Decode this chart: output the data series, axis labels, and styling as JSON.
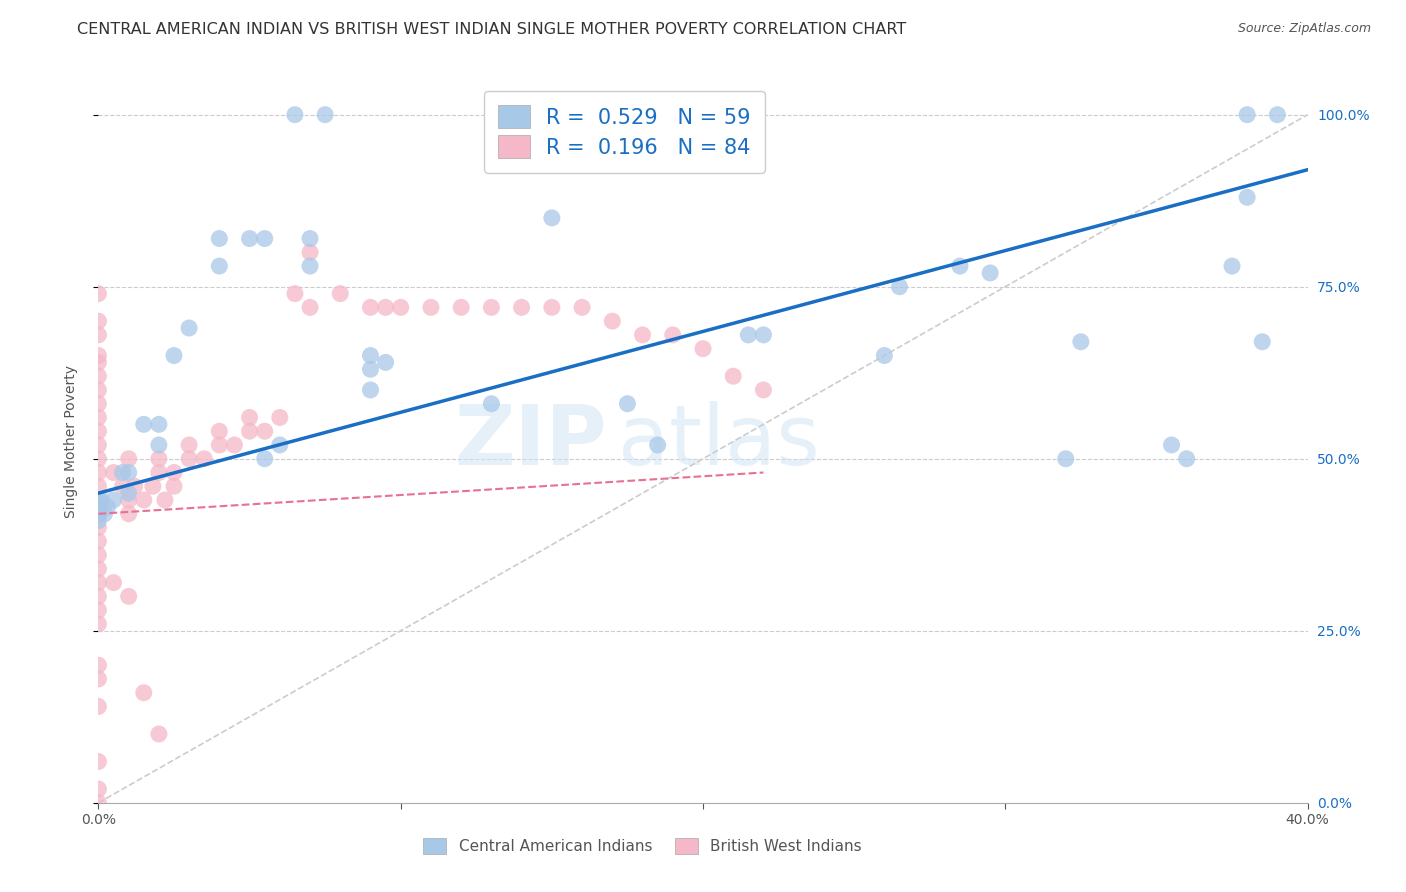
{
  "title": "CENTRAL AMERICAN INDIAN VS BRITISH WEST INDIAN SINGLE MOTHER POVERTY CORRELATION CHART",
  "source": "Source: ZipAtlas.com",
  "legend_label1": "Central American Indians",
  "legend_label2": "British West Indians",
  "legend_r1": "0.529",
  "legend_n1": "59",
  "legend_r2": "0.196",
  "legend_n2": "84",
  "color_blue": "#a8c8e8",
  "color_pink": "#f4b8c8",
  "color_line_blue": "#1a6fc4",
  "color_line_pink": "#e87090",
  "color_diag": "#cccccc",
  "watermark_zip": "ZIP",
  "watermark_atlas": "atlas",
  "ylabel": "Single Mother Poverty",
  "blue_x": [
    0.14,
    0.145,
    0.065,
    0.075,
    0.055,
    0.05,
    0.04,
    0.04,
    0.03,
    0.025,
    0.02,
    0.02,
    0.015,
    0.01,
    0.01,
    0.008,
    0.005,
    0.003,
    0.002,
    0.001,
    0.0,
    0.0,
    0.0,
    0.0,
    0.0,
    0.0,
    0.0,
    0.0,
    0.0,
    0.0,
    0.0,
    0.0,
    0.095,
    0.09,
    0.175,
    0.185,
    0.215,
    0.26,
    0.265,
    0.285,
    0.295,
    0.32,
    0.325,
    0.355,
    0.36,
    0.375,
    0.385,
    0.38,
    0.39,
    0.38,
    0.22,
    0.13,
    0.09,
    0.09,
    0.055,
    0.06,
    0.07,
    0.07,
    0.15
  ],
  "blue_y": [
    1.0,
    1.0,
    1.0,
    1.0,
    0.82,
    0.82,
    0.82,
    0.78,
    0.69,
    0.65,
    0.55,
    0.52,
    0.55,
    0.48,
    0.45,
    0.48,
    0.44,
    0.43,
    0.42,
    0.44,
    0.44,
    0.42,
    0.43,
    0.43,
    0.42,
    0.43,
    0.43,
    0.42,
    0.43,
    0.42,
    0.41,
    0.42,
    0.64,
    0.6,
    0.58,
    0.52,
    0.68,
    0.65,
    0.75,
    0.78,
    0.77,
    0.5,
    0.67,
    0.52,
    0.5,
    0.78,
    0.67,
    1.0,
    1.0,
    0.88,
    0.68,
    0.58,
    0.65,
    0.63,
    0.5,
    0.52,
    0.82,
    0.78,
    0.85
  ],
  "pink_x": [
    0.0,
    0.0,
    0.0,
    0.0,
    0.0,
    0.0,
    0.0,
    0.0,
    0.0,
    0.0,
    0.0,
    0.0,
    0.0,
    0.0,
    0.0,
    0.0,
    0.0,
    0.0,
    0.0,
    0.0,
    0.0,
    0.0,
    0.0,
    0.0,
    0.0,
    0.0,
    0.0,
    0.0,
    0.0,
    0.0,
    0.005,
    0.008,
    0.01,
    0.01,
    0.01,
    0.012,
    0.015,
    0.018,
    0.02,
    0.02,
    0.022,
    0.025,
    0.025,
    0.03,
    0.03,
    0.035,
    0.04,
    0.04,
    0.045,
    0.05,
    0.05,
    0.055,
    0.06,
    0.065,
    0.07,
    0.07,
    0.08,
    0.09,
    0.095,
    0.1,
    0.11,
    0.12,
    0.13,
    0.14,
    0.15,
    0.16,
    0.17,
    0.18,
    0.19,
    0.2,
    0.21,
    0.22,
    0.0,
    0.0,
    0.0,
    0.0,
    0.0,
    0.0,
    0.0,
    0.0,
    0.005,
    0.01,
    0.015,
    0.02
  ],
  "pink_y": [
    0.7,
    0.65,
    0.6,
    0.58,
    0.56,
    0.54,
    0.52,
    0.5,
    0.48,
    0.46,
    0.44,
    0.43,
    0.43,
    0.42,
    0.42,
    0.42,
    0.42,
    0.42,
    0.42,
    0.42,
    0.4,
    0.38,
    0.36,
    0.34,
    0.32,
    0.3,
    0.28,
    0.26,
    0.2,
    0.18,
    0.48,
    0.46,
    0.44,
    0.42,
    0.5,
    0.46,
    0.44,
    0.46,
    0.5,
    0.48,
    0.44,
    0.48,
    0.46,
    0.52,
    0.5,
    0.5,
    0.54,
    0.52,
    0.52,
    0.56,
    0.54,
    0.54,
    0.56,
    0.74,
    0.8,
    0.72,
    0.74,
    0.72,
    0.72,
    0.72,
    0.72,
    0.72,
    0.72,
    0.72,
    0.72,
    0.72,
    0.7,
    0.68,
    0.68,
    0.66,
    0.62,
    0.6,
    0.74,
    0.68,
    0.64,
    0.62,
    0.14,
    0.06,
    0.02,
    0.0,
    0.32,
    0.3,
    0.16,
    0.1
  ],
  "xlim": [
    0.0,
    0.4
  ],
  "ylim": [
    0.0,
    1.05
  ],
  "title_fontsize": 11.5,
  "axis_tick_fontsize": 10,
  "ylabel_fontsize": 10,
  "blue_line_x": [
    0.0,
    0.4
  ],
  "blue_line_y": [
    0.45,
    0.92
  ],
  "pink_line_x": [
    0.0,
    0.22
  ],
  "pink_line_y": [
    0.42,
    0.48
  ]
}
